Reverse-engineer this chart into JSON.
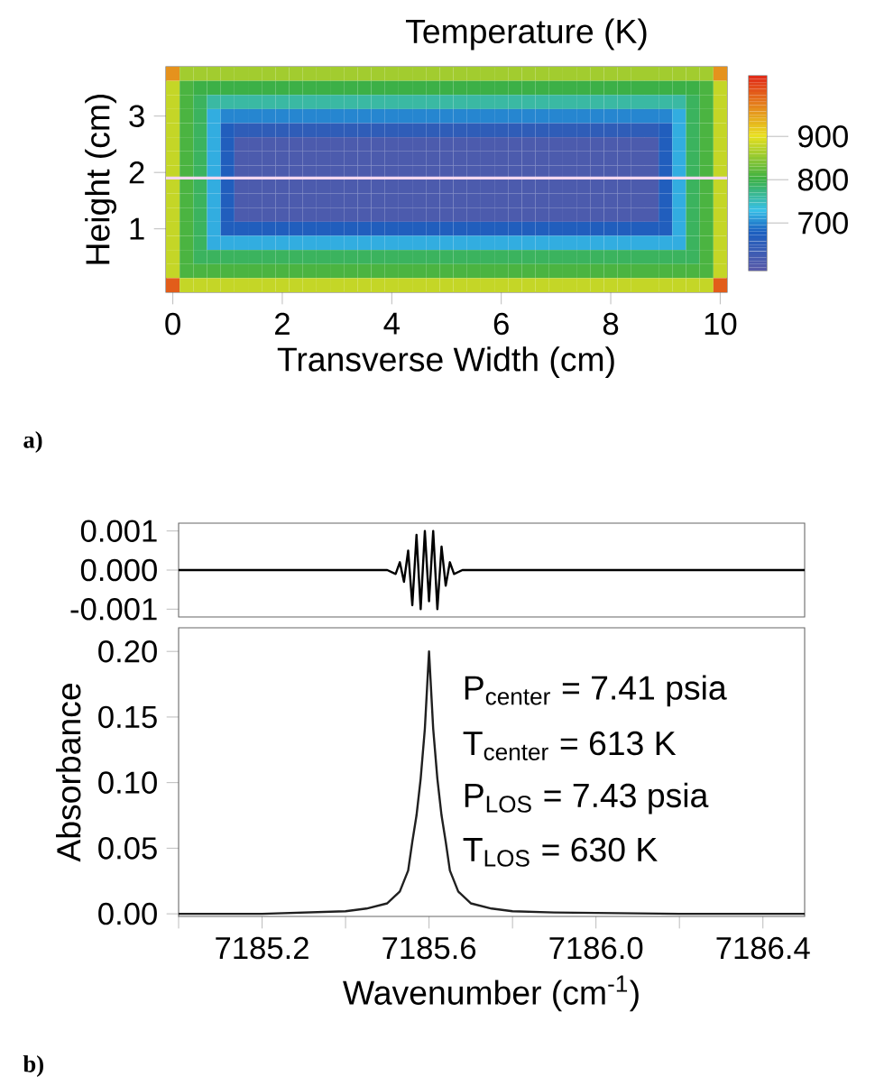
{
  "chart_data": [
    {
      "type": "heatmap",
      "clabel": "Temperature (K)",
      "xlabel": "Transverse Width (cm)",
      "ylabel": "Height (cm)",
      "annotations": [
        "a)"
      ],
      "categories": [
        "0",
        null,
        null,
        null,
        null,
        null,
        null,
        null,
        "2",
        null,
        null,
        null,
        null,
        null,
        null,
        null,
        "4",
        null,
        null,
        null,
        null,
        null,
        null,
        null,
        "6",
        null,
        null,
        null,
        null,
        null,
        null,
        null,
        "8",
        null,
        null,
        null,
        null,
        null,
        null,
        null,
        "10"
      ],
      "y_categories": [
        null,
        null,
        null,
        "3",
        null,
        null,
        null,
        "2",
        null,
        null,
        null,
        "1",
        null,
        null,
        null,
        null
      ],
      "clim": [
        590,
        1040
      ],
      "cticks": [
        700,
        800,
        900
      ],
      "cells": [
        [
          960,
          860,
          860,
          860,
          860,
          860,
          860,
          860,
          860,
          860,
          860,
          860,
          860,
          860,
          860,
          860,
          860,
          860,
          860,
          860,
          860,
          860,
          860,
          860,
          860,
          860,
          860,
          860,
          860,
          860,
          860,
          860,
          860,
          860,
          860,
          860,
          860,
          860,
          860,
          860,
          960
        ],
        [
          880,
          810,
          800,
          800,
          800,
          800,
          800,
          800,
          800,
          800,
          800,
          800,
          800,
          800,
          800,
          800,
          800,
          800,
          800,
          800,
          800,
          800,
          800,
          800,
          800,
          800,
          800,
          800,
          800,
          800,
          800,
          800,
          800,
          800,
          800,
          800,
          800,
          800,
          800,
          810,
          880
        ],
        [
          880,
          810,
          790,
          760,
          760,
          760,
          760,
          760,
          760,
          760,
          760,
          760,
          760,
          760,
          760,
          760,
          760,
          760,
          760,
          760,
          760,
          760,
          760,
          760,
          760,
          760,
          760,
          760,
          760,
          760,
          760,
          760,
          760,
          760,
          760,
          760,
          760,
          760,
          790,
          810,
          880
        ],
        [
          880,
          810,
          790,
          720,
          700,
          700,
          700,
          700,
          700,
          700,
          700,
          700,
          700,
          700,
          700,
          700,
          700,
          700,
          700,
          700,
          700,
          700,
          700,
          700,
          700,
          700,
          700,
          700,
          700,
          700,
          700,
          700,
          700,
          700,
          700,
          700,
          700,
          720,
          790,
          810,
          880
        ],
        [
          880,
          810,
          790,
          720,
          670,
          650,
          650,
          650,
          650,
          650,
          650,
          650,
          650,
          650,
          650,
          650,
          650,
          650,
          650,
          650,
          650,
          650,
          650,
          650,
          650,
          650,
          650,
          650,
          650,
          650,
          650,
          650,
          650,
          650,
          650,
          650,
          670,
          720,
          790,
          810,
          880
        ],
        [
          880,
          810,
          790,
          720,
          670,
          610,
          610,
          610,
          610,
          610,
          610,
          610,
          610,
          610,
          610,
          610,
          610,
          610,
          610,
          610,
          610,
          610,
          610,
          610,
          610,
          610,
          610,
          610,
          610,
          610,
          610,
          610,
          610,
          610,
          610,
          610,
          670,
          720,
          790,
          810,
          880
        ],
        [
          880,
          810,
          790,
          720,
          670,
          610,
          610,
          610,
          610,
          610,
          610,
          610,
          610,
          610,
          610,
          610,
          610,
          610,
          610,
          610,
          610,
          610,
          610,
          610,
          610,
          610,
          610,
          610,
          610,
          610,
          610,
          610,
          610,
          610,
          610,
          610,
          670,
          720,
          790,
          810,
          880
        ],
        [
          880,
          810,
          790,
          720,
          670,
          610,
          610,
          610,
          610,
          610,
          610,
          610,
          610,
          610,
          610,
          610,
          610,
          610,
          610,
          610,
          610,
          610,
          610,
          610,
          610,
          610,
          610,
          610,
          610,
          610,
          610,
          610,
          610,
          610,
          610,
          610,
          670,
          720,
          790,
          810,
          880
        ],
        [
          880,
          810,
          790,
          720,
          670,
          610,
          610,
          610,
          610,
          610,
          610,
          610,
          610,
          610,
          610,
          610,
          610,
          610,
          610,
          610,
          610,
          610,
          610,
          610,
          610,
          610,
          610,
          610,
          610,
          610,
          610,
          610,
          610,
          610,
          610,
          610,
          670,
          720,
          790,
          810,
          880
        ],
        [
          880,
          810,
          790,
          720,
          670,
          610,
          610,
          610,
          610,
          610,
          610,
          610,
          610,
          610,
          610,
          610,
          610,
          610,
          610,
          610,
          610,
          610,
          610,
          610,
          610,
          610,
          610,
          610,
          610,
          610,
          610,
          610,
          610,
          610,
          610,
          610,
          670,
          720,
          790,
          810,
          880
        ],
        [
          880,
          810,
          790,
          720,
          670,
          610,
          610,
          610,
          610,
          610,
          610,
          610,
          610,
          610,
          610,
          610,
          610,
          610,
          610,
          610,
          610,
          610,
          610,
          610,
          610,
          610,
          610,
          610,
          610,
          610,
          610,
          610,
          610,
          610,
          610,
          610,
          670,
          720,
          790,
          810,
          880
        ],
        [
          880,
          810,
          790,
          720,
          670,
          670,
          670,
          670,
          670,
          670,
          670,
          670,
          670,
          670,
          670,
          670,
          670,
          670,
          670,
          670,
          670,
          670,
          670,
          670,
          670,
          670,
          670,
          670,
          670,
          670,
          670,
          670,
          670,
          670,
          670,
          670,
          670,
          720,
          790,
          810,
          880
        ],
        [
          880,
          810,
          790,
          720,
          720,
          720,
          720,
          720,
          720,
          720,
          720,
          720,
          720,
          720,
          720,
          720,
          720,
          720,
          720,
          720,
          720,
          720,
          720,
          720,
          720,
          720,
          720,
          720,
          720,
          720,
          720,
          720,
          720,
          720,
          720,
          720,
          720,
          720,
          790,
          810,
          880
        ],
        [
          880,
          810,
          790,
          790,
          790,
          790,
          790,
          790,
          790,
          790,
          790,
          790,
          790,
          790,
          790,
          790,
          790,
          790,
          790,
          790,
          790,
          790,
          790,
          790,
          790,
          790,
          790,
          790,
          790,
          790,
          790,
          790,
          790,
          790,
          790,
          790,
          790,
          790,
          790,
          810,
          880
        ],
        [
          880,
          810,
          810,
          810,
          810,
          810,
          810,
          810,
          810,
          810,
          810,
          810,
          810,
          810,
          810,
          810,
          810,
          810,
          810,
          810,
          810,
          810,
          810,
          810,
          810,
          810,
          810,
          810,
          810,
          810,
          810,
          810,
          810,
          810,
          810,
          810,
          810,
          810,
          810,
          810,
          880
        ],
        [
          1000,
          880,
          880,
          880,
          880,
          880,
          880,
          880,
          880,
          880,
          880,
          880,
          880,
          880,
          880,
          880,
          880,
          880,
          880,
          880,
          880,
          880,
          880,
          880,
          880,
          880,
          880,
          880,
          880,
          880,
          880,
          880,
          880,
          880,
          880,
          880,
          880,
          880,
          880,
          880,
          1000
        ]
      ]
    },
    {
      "type": "line",
      "annotations": [
        "b)"
      ],
      "tick_labels": "y",
      "xlim": [
        7185.0,
        7186.5
      ],
      "ylim": [
        -0.0012,
        0.0012
      ],
      "yticks": [
        {
          "value": -0.001,
          "label": "-0.001"
        },
        {
          "value": 0,
          "label": "0.000"
        },
        {
          "value": 0.001,
          "label": "0.001"
        }
      ],
      "x": [
        7185.0,
        7185.45,
        7185.5,
        7185.52,
        7185.53,
        7185.54,
        7185.55,
        7185.56,
        7185.57,
        7185.58,
        7185.59,
        7185.6,
        7185.61,
        7185.62,
        7185.63,
        7185.64,
        7185.65,
        7185.66,
        7185.68,
        7185.7,
        7186.5
      ],
      "series": [
        {
          "color": "#000000",
          "values": [
            0,
            0,
            0,
            -0.0001,
            0.0002,
            -0.0003,
            0.0005,
            -0.0009,
            0.0009,
            -0.001,
            0.001,
            -0.0008,
            0.001,
            -0.001,
            0.0006,
            -0.0004,
            0.0002,
            -0.0001,
            0,
            0,
            0
          ]
        }
      ]
    },
    {
      "type": "line",
      "xlabel": "Wavenumber (cm$^{-1}$)",
      "ylabel": "Absorbance",
      "annotations": [
        "P$_{center}$ = 7.41 psia",
        "T$_{center}$ = 613 K",
        "P$_{LOS}$ = 7.43 psia",
        "T$_{LOS}$ = 630 K"
      ],
      "xlim": [
        7185.0,
        7186.5
      ],
      "ylim": [
        -0.002,
        0.218
      ],
      "xticks": [
        {
          "value": 7185.0,
          "label": null
        },
        7185.2,
        {
          "value": 7185.4,
          "label": null
        },
        7185.6,
        {
          "value": 7185.8,
          "label": null
        },
        {
          "value": 7186.0,
          "label": "7186.0"
        },
        {
          "value": 7186.2,
          "label": null
        },
        7186.4
      ],
      "yticks": [
        {
          "value": 0,
          "label": "0.00"
        },
        0.05,
        {
          "value": 0.1,
          "label": "0.10"
        },
        0.15,
        {
          "value": 0.2,
          "label": "0.20"
        }
      ],
      "x": [
        7185.0,
        7185.2,
        7185.3,
        7185.4,
        7185.45,
        7185.5,
        7185.53,
        7185.55,
        7185.56,
        7185.57,
        7185.58,
        7185.59,
        7185.6,
        7185.61,
        7185.62,
        7185.63,
        7185.64,
        7185.65,
        7185.67,
        7185.7,
        7185.75,
        7185.8,
        7185.9,
        7186.2,
        7186.5
      ],
      "series": [
        {
          "color": "#202020",
          "values": [
            0,
            0,
            0.001,
            0.002,
            0.004,
            0.008,
            0.017,
            0.033,
            0.055,
            0.075,
            0.103,
            0.141,
            0.2,
            0.141,
            0.103,
            0.075,
            0.055,
            0.033,
            0.017,
            0.008,
            0.004,
            0.002,
            0.001,
            0,
            0
          ]
        }
      ]
    }
  ]
}
